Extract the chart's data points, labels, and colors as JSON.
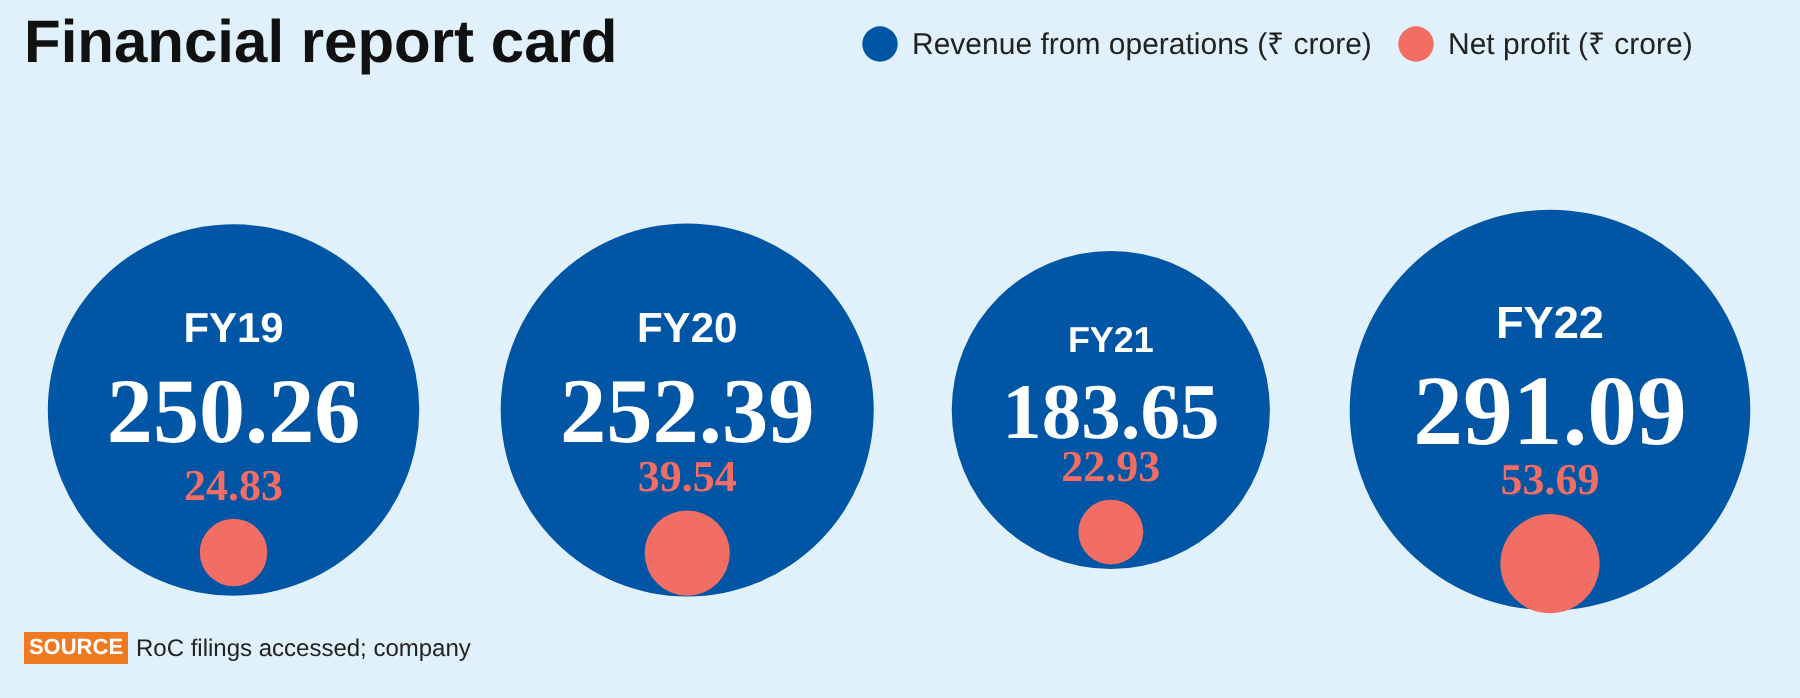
{
  "chart_data": {
    "type": "other",
    "title": "Financial report card",
    "categories": [
      "FY19",
      "FY20",
      "FY21",
      "FY22"
    ],
    "series": [
      {
        "name": "Revenue from operations (₹ crore)",
        "color": "#0055a5",
        "values": [
          250.26,
          252.39,
          183.65,
          291.09
        ]
      },
      {
        "name": "Net profit (₹ crore)",
        "color": "#f26d63",
        "values": [
          24.83,
          39.54,
          22.93,
          53.69
        ]
      }
    ],
    "data_labels": true,
    "legend": "top right",
    "annotations": [
      "SOURCE RoC filings accessed; company"
    ]
  }
}
